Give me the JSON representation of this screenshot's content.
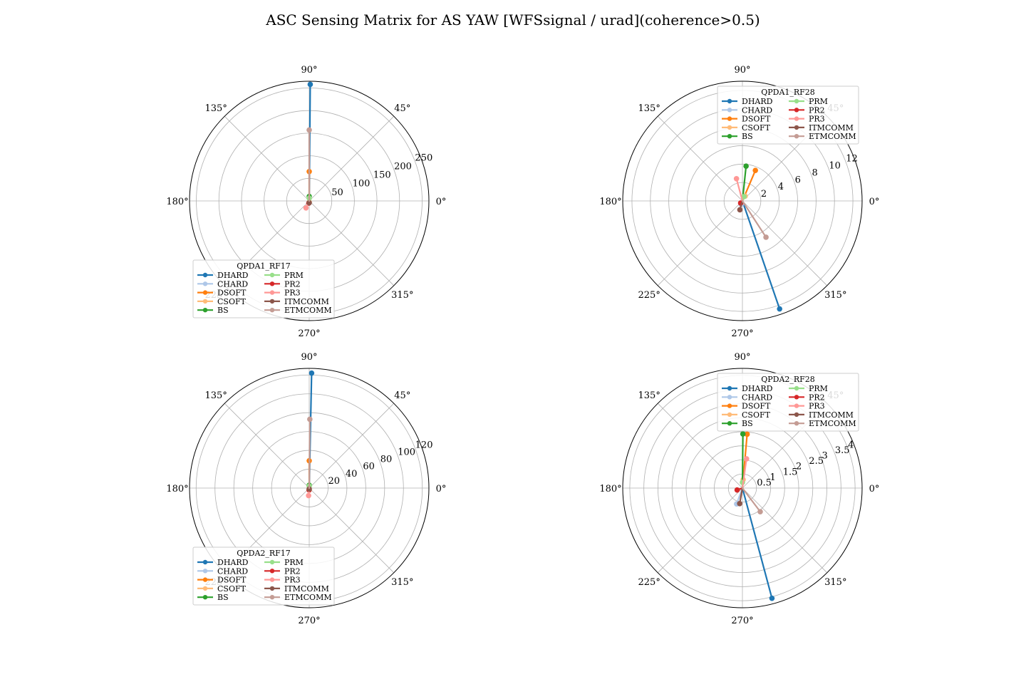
{
  "figure": {
    "title": "ASC Sensing Matrix for AS YAW [WFSsignal / urad](coherence>0.5)"
  },
  "series_colors": {
    "DHARD": "#1f77b4",
    "CHARD": "#aec7e8",
    "DSOFT": "#ff7f0e",
    "CSOFT": "#ffbb78",
    "BS": "#2ca02c",
    "PRM": "#98df8a",
    "PR2": "#d62728",
    "PR3": "#ff9896",
    "ITMCOMM": "#8c564b",
    "ETMCOMM": "#c49c94"
  },
  "chart_data": [
    {
      "type": "polar",
      "title": "",
      "legend_title": "QPDA1_RF17",
      "legend_position": "lower-left",
      "angle_ticks": [
        "0°",
        "45°",
        "90°",
        "135°",
        "180°",
        "225°",
        "270°",
        "315°"
      ],
      "r_ticks": [
        50,
        100,
        150,
        200,
        250
      ],
      "r_max": 265,
      "grid": true,
      "series": [
        {
          "name": "DHARD",
          "theta_deg": 89.5,
          "r": 258
        },
        {
          "name": "CHARD",
          "theta_deg": 265,
          "r": 4
        },
        {
          "name": "DSOFT",
          "theta_deg": 90,
          "r": 65
        },
        {
          "name": "CSOFT",
          "theta_deg": 270,
          "r": 3
        },
        {
          "name": "BS",
          "theta_deg": 90,
          "r": 10
        },
        {
          "name": "PRM",
          "theta_deg": 90,
          "r": 6
        },
        {
          "name": "PR2",
          "theta_deg": 260,
          "r": 5
        },
        {
          "name": "PR3",
          "theta_deg": 245,
          "r": 17
        },
        {
          "name": "ITMCOMM",
          "theta_deg": 270,
          "r": 4
        },
        {
          "name": "ETMCOMM",
          "theta_deg": 90,
          "r": 157
        }
      ]
    },
    {
      "type": "polar",
      "title": "",
      "legend_title": "QPDA1_RF28",
      "legend_position": "top-right",
      "angle_ticks": [
        "0°",
        "45°",
        "90°",
        "135°",
        "180°",
        "225°",
        "270°",
        "315°"
      ],
      "r_ticks": [
        2,
        4,
        6,
        8,
        10,
        12
      ],
      "r_max": 13,
      "grid": true,
      "series": [
        {
          "name": "DHARD",
          "theta_deg": 289,
          "r": 12.4
        },
        {
          "name": "CHARD",
          "theta_deg": 250,
          "r": 0.4
        },
        {
          "name": "DSOFT",
          "theta_deg": 67,
          "r": 3.6
        },
        {
          "name": "CSOFT",
          "theta_deg": 60,
          "r": 0.6
        },
        {
          "name": "BS",
          "theta_deg": 84,
          "r": 3.8
        },
        {
          "name": "PRM",
          "theta_deg": 70,
          "r": 0.5
        },
        {
          "name": "PR2",
          "theta_deg": 230,
          "r": 0.3
        },
        {
          "name": "PR3",
          "theta_deg": 105,
          "r": 2.5
        },
        {
          "name": "ITMCOMM",
          "theta_deg": 254,
          "r": 1.0
        },
        {
          "name": "ETMCOMM",
          "theta_deg": 303,
          "r": 4.7
        }
      ]
    },
    {
      "type": "polar",
      "title": "",
      "legend_title": "QPDA2_RF17",
      "legend_position": "lower-left",
      "angle_ticks": [
        "0°",
        "45°",
        "90°",
        "135°",
        "180°",
        "225°",
        "270°",
        "315°"
      ],
      "r_ticks": [
        20,
        40,
        60,
        80,
        100,
        120
      ],
      "r_max": 127,
      "grid": true,
      "series": [
        {
          "name": "DHARD",
          "theta_deg": 88.8,
          "r": 122
        },
        {
          "name": "CHARD",
          "theta_deg": 268,
          "r": 2
        },
        {
          "name": "DSOFT",
          "theta_deg": 90,
          "r": 29
        },
        {
          "name": "CSOFT",
          "theta_deg": 270,
          "r": 2
        },
        {
          "name": "BS",
          "theta_deg": 90,
          "r": 3
        },
        {
          "name": "PRM",
          "theta_deg": 90,
          "r": 2
        },
        {
          "name": "PR2",
          "theta_deg": 265,
          "r": 2
        },
        {
          "name": "PR3",
          "theta_deg": 265,
          "r": 8
        },
        {
          "name": "ITMCOMM",
          "theta_deg": 270,
          "r": 1
        },
        {
          "name": "ETMCOMM",
          "theta_deg": 89.5,
          "r": 73
        }
      ]
    },
    {
      "type": "polar",
      "title": "",
      "legend_title": "QPDA2_RF28",
      "legend_position": "top-right",
      "angle_ticks": [
        "0°",
        "45°",
        "90°",
        "135°",
        "180°",
        "225°",
        "270°",
        "315°"
      ],
      "r_ticks": [
        0.5,
        1.0,
        1.5,
        2.0,
        2.5,
        3.0,
        3.5,
        4.0
      ],
      "r_max": 4.25,
      "grid": true,
      "series": [
        {
          "name": "DHARD",
          "theta_deg": 285,
          "r": 4.05
        },
        {
          "name": "CHARD",
          "theta_deg": 250,
          "r": 0.6
        },
        {
          "name": "DSOFT",
          "theta_deg": 85,
          "r": 1.92
        },
        {
          "name": "CSOFT",
          "theta_deg": 85,
          "r": 0.3
        },
        {
          "name": "BS",
          "theta_deg": 89.5,
          "r": 1.92
        },
        {
          "name": "PRM",
          "theta_deg": 90,
          "r": 0.2
        },
        {
          "name": "PR2",
          "theta_deg": 200,
          "r": 0.2
        },
        {
          "name": "PR3",
          "theta_deg": 82,
          "r": 1.05
        },
        {
          "name": "ITMCOMM",
          "theta_deg": 260,
          "r": 0.56
        },
        {
          "name": "ETMCOMM",
          "theta_deg": 307,
          "r": 1.05
        }
      ]
    }
  ]
}
